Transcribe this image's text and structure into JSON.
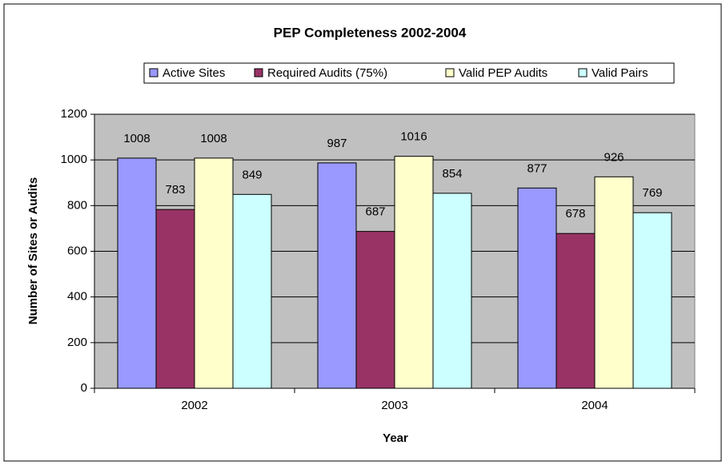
{
  "chart_data": {
    "type": "bar",
    "title": "PEP Completeness 2002-2004",
    "x_label": "Year",
    "y_label": "Number of Sites or Audits",
    "categories": [
      "2002",
      "2003",
      "2004"
    ],
    "series": [
      {
        "name": "Active Sites",
        "color": "#9999ff",
        "values": [
          1008,
          987,
          877
        ]
      },
      {
        "name": "Required Audits (75%)",
        "color": "#993366",
        "values": [
          783,
          687,
          678
        ]
      },
      {
        "name": "Valid PEP Audits",
        "color": "#ffffcc",
        "values": [
          1008,
          1016,
          926
        ]
      },
      {
        "name": "Valid Pairs",
        "color": "#ccffff",
        "values": [
          849,
          854,
          769
        ]
      }
    ],
    "ylim": [
      0,
      1200
    ],
    "yticks": [
      0,
      200,
      400,
      600,
      800,
      1000,
      1200
    ],
    "grid": true,
    "legend": "top"
  }
}
